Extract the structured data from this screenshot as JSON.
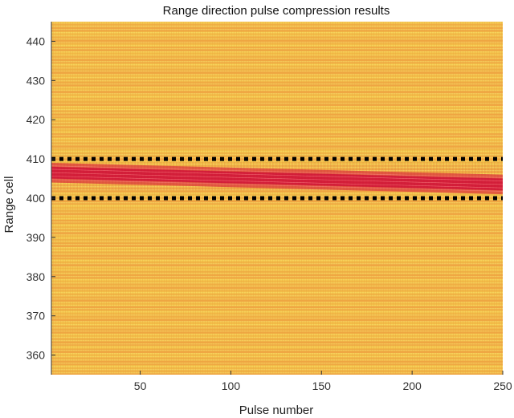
{
  "chart_data": {
    "type": "heatmap",
    "title": "Range direction pulse compression results",
    "xlabel": "Pulse number",
    "ylabel": "Range cell",
    "xlim": [
      1,
      250
    ],
    "ylim": [
      355,
      445
    ],
    "x_ticks": [
      50,
      100,
      150,
      200,
      250
    ],
    "y_ticks": [
      360,
      370,
      380,
      390,
      400,
      410,
      420,
      430,
      440
    ],
    "grid": false,
    "colormap": {
      "low": "#f5d34c",
      "mid": "#f0a844",
      "high": "#d41f3a"
    },
    "target_track": {
      "start": {
        "pulse": 1,
        "range_cell": 406.5
      },
      "end": {
        "pulse": 250,
        "range_cell": 403.5
      },
      "half_width_cells": 2.5
    },
    "annotations": [
      {
        "type": "dotted-line",
        "range_cell": 410,
        "color": "#000000"
      },
      {
        "type": "dotted-line",
        "range_cell": 400,
        "color": "#000000"
      }
    ]
  }
}
